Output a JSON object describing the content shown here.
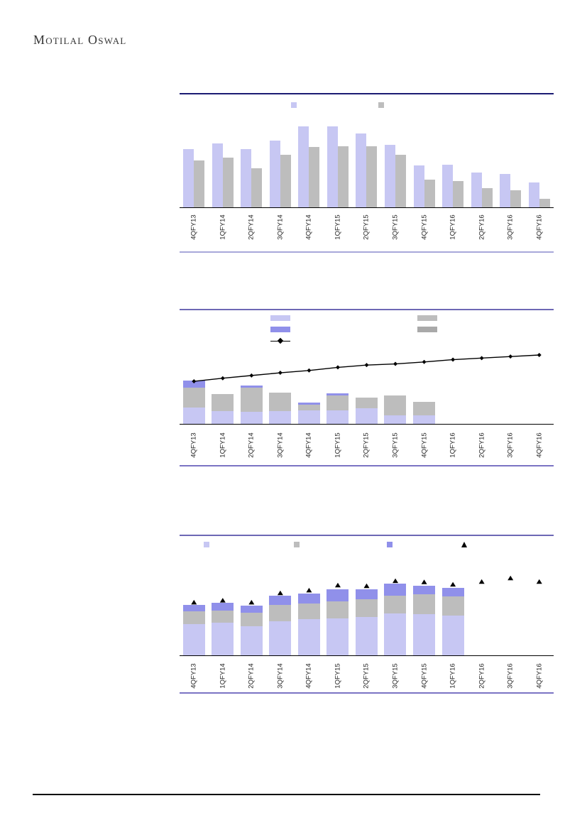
{
  "header": {
    "logo": "Motilal Oswal"
  },
  "colors": {
    "page_bg": "#ffffff",
    "lavender": "#c7c7f3",
    "gray": "#bdbdbd",
    "gray_dark": "#a9a9a9",
    "purple_mid": "#9090ea",
    "navy_border": "#1b1b73",
    "purple_border": "#6d68b5",
    "violet_border": "#7b74c4",
    "lavender_border": "#a8a8da",
    "marker_black": "#000000",
    "axis_line": "#000000",
    "label_text": "#262626"
  },
  "categories": [
    "4QFY13",
    "1QFY14",
    "2QFY14",
    "3QFY14",
    "4QFY14",
    "1QFY15",
    "2QFY15",
    "3QFY15",
    "4QFY15",
    "1QFY16",
    "2QFY16",
    "3QFY16",
    "4QFY16"
  ],
  "chart_data": [
    {
      "type": "bar",
      "layout": "grouped",
      "title": "",
      "xlabel": "",
      "ylabel": "",
      "value_unit": "percent_of_plot_height",
      "note": "axis tick values, series names and title are not visible in the image",
      "legend": [
        {
          "marker": "square",
          "color": "lavender",
          "label": ""
        },
        {
          "marker": "square",
          "color": "gray",
          "label": ""
        }
      ],
      "categories": [
        "4QFY13",
        "1QFY14",
        "2QFY14",
        "3QFY14",
        "4QFY14",
        "1QFY15",
        "2QFY15",
        "3QFY15",
        "4QFY15",
        "1QFY16",
        "2QFY16",
        "3QFY16",
        "4QFY16"
      ],
      "series": [
        {
          "name": "unlabeled-lavender",
          "color": "lavender",
          "values": [
            62,
            68,
            62,
            71,
            86,
            86,
            78,
            66,
            44,
            45,
            37,
            35,
            26
          ]
        },
        {
          "name": "unlabeled-gray",
          "color": "gray",
          "values": [
            50,
            53,
            41,
            56,
            64,
            65,
            65,
            56,
            29,
            28,
            20,
            18,
            9
          ]
        }
      ]
    },
    {
      "type": "bar+line",
      "layout": "stacked",
      "title": "",
      "xlabel": "",
      "ylabel": "",
      "value_unit": "percent_of_plot_height",
      "note": "stacked bars only plotted for 4QFY13-4QFY15; line spans all quarters; labels not visible",
      "legend": [
        {
          "marker": "bar",
          "color": "lavender",
          "label": ""
        },
        {
          "marker": "bar",
          "color": "purple_mid",
          "label": ""
        },
        {
          "marker": "line-diamond",
          "color": "marker_black",
          "label": ""
        },
        {
          "marker": "bar",
          "color": "gray",
          "label": ""
        },
        {
          "marker": "bar",
          "color": "gray_dark",
          "label": ""
        }
      ],
      "categories": [
        "4QFY13",
        "1QFY14",
        "2QFY14",
        "3QFY14",
        "4QFY14",
        "1QFY15",
        "2QFY15",
        "3QFY15",
        "4QFY15",
        "1QFY16",
        "2QFY16",
        "3QFY16",
        "4QFY16"
      ],
      "series": [
        {
          "name": "stack-lavender",
          "color": "lavender",
          "values": [
            21,
            16.5,
            15.5,
            16.5,
            17.5,
            17.5,
            20,
            11,
            11,
            0,
            0,
            0,
            0
          ]
        },
        {
          "name": "stack-gray",
          "color": "gray",
          "values": [
            26,
            22,
            31,
            24,
            7.5,
            19,
            14,
            26,
            17.5,
            0,
            0,
            0,
            0
          ]
        },
        {
          "name": "stack-purple",
          "color": "purple_mid",
          "values": [
            9,
            0,
            3,
            0,
            3,
            3,
            0,
            0,
            0,
            0,
            0,
            0,
            0
          ]
        }
      ],
      "line_series": {
        "name": "unlabeled-line",
        "color": "marker_black",
        "marker": "diamond",
        "values": [
          55,
          59,
          62.5,
          66,
          69,
          73,
          76,
          77.5,
          80,
          83,
          85,
          87,
          89
        ]
      }
    },
    {
      "type": "bar+scatter",
      "layout": "stacked",
      "title": "",
      "xlabel": "",
      "ylabel": "",
      "value_unit": "percent_of_plot_height",
      "note": "stacked bars only plotted for 4QFY13-1QFY16; triangle markers span all quarters; labels not visible",
      "legend": [
        {
          "marker": "square",
          "color": "lavender",
          "label": ""
        },
        {
          "marker": "square",
          "color": "gray",
          "label": ""
        },
        {
          "marker": "square",
          "color": "purple_mid",
          "label": ""
        },
        {
          "marker": "triangle",
          "color": "marker_black",
          "label": ""
        }
      ],
      "categories": [
        "4QFY13",
        "1QFY14",
        "2QFY14",
        "3QFY14",
        "4QFY14",
        "1QFY15",
        "2QFY15",
        "3QFY15",
        "4QFY15",
        "1QFY16",
        "2QFY16",
        "3QFY16",
        "4QFY16"
      ],
      "series": [
        {
          "name": "stack-lavender",
          "color": "lavender",
          "values": [
            40,
            42,
            37,
            44,
            46,
            47,
            49,
            54,
            53,
            51,
            0,
            0,
            0
          ]
        },
        {
          "name": "stack-gray",
          "color": "gray",
          "values": [
            16,
            15,
            18,
            21,
            20,
            22,
            23,
            22,
            25,
            24.5,
            0,
            0,
            0
          ]
        },
        {
          "name": "stack-purple",
          "color": "purple_mid",
          "values": [
            9,
            10,
            9,
            11,
            13,
            16,
            13,
            15.5,
            11,
            11,
            0,
            0,
            0
          ]
        }
      ],
      "marker_series": {
        "name": "unlabeled-triangles",
        "color": "marker_black",
        "marker": "triangle",
        "values": [
          66,
          68.5,
          66,
          78,
          81.5,
          88,
          87,
          93.5,
          92,
          89,
          92.5,
          97,
          92.5
        ]
      }
    }
  ]
}
